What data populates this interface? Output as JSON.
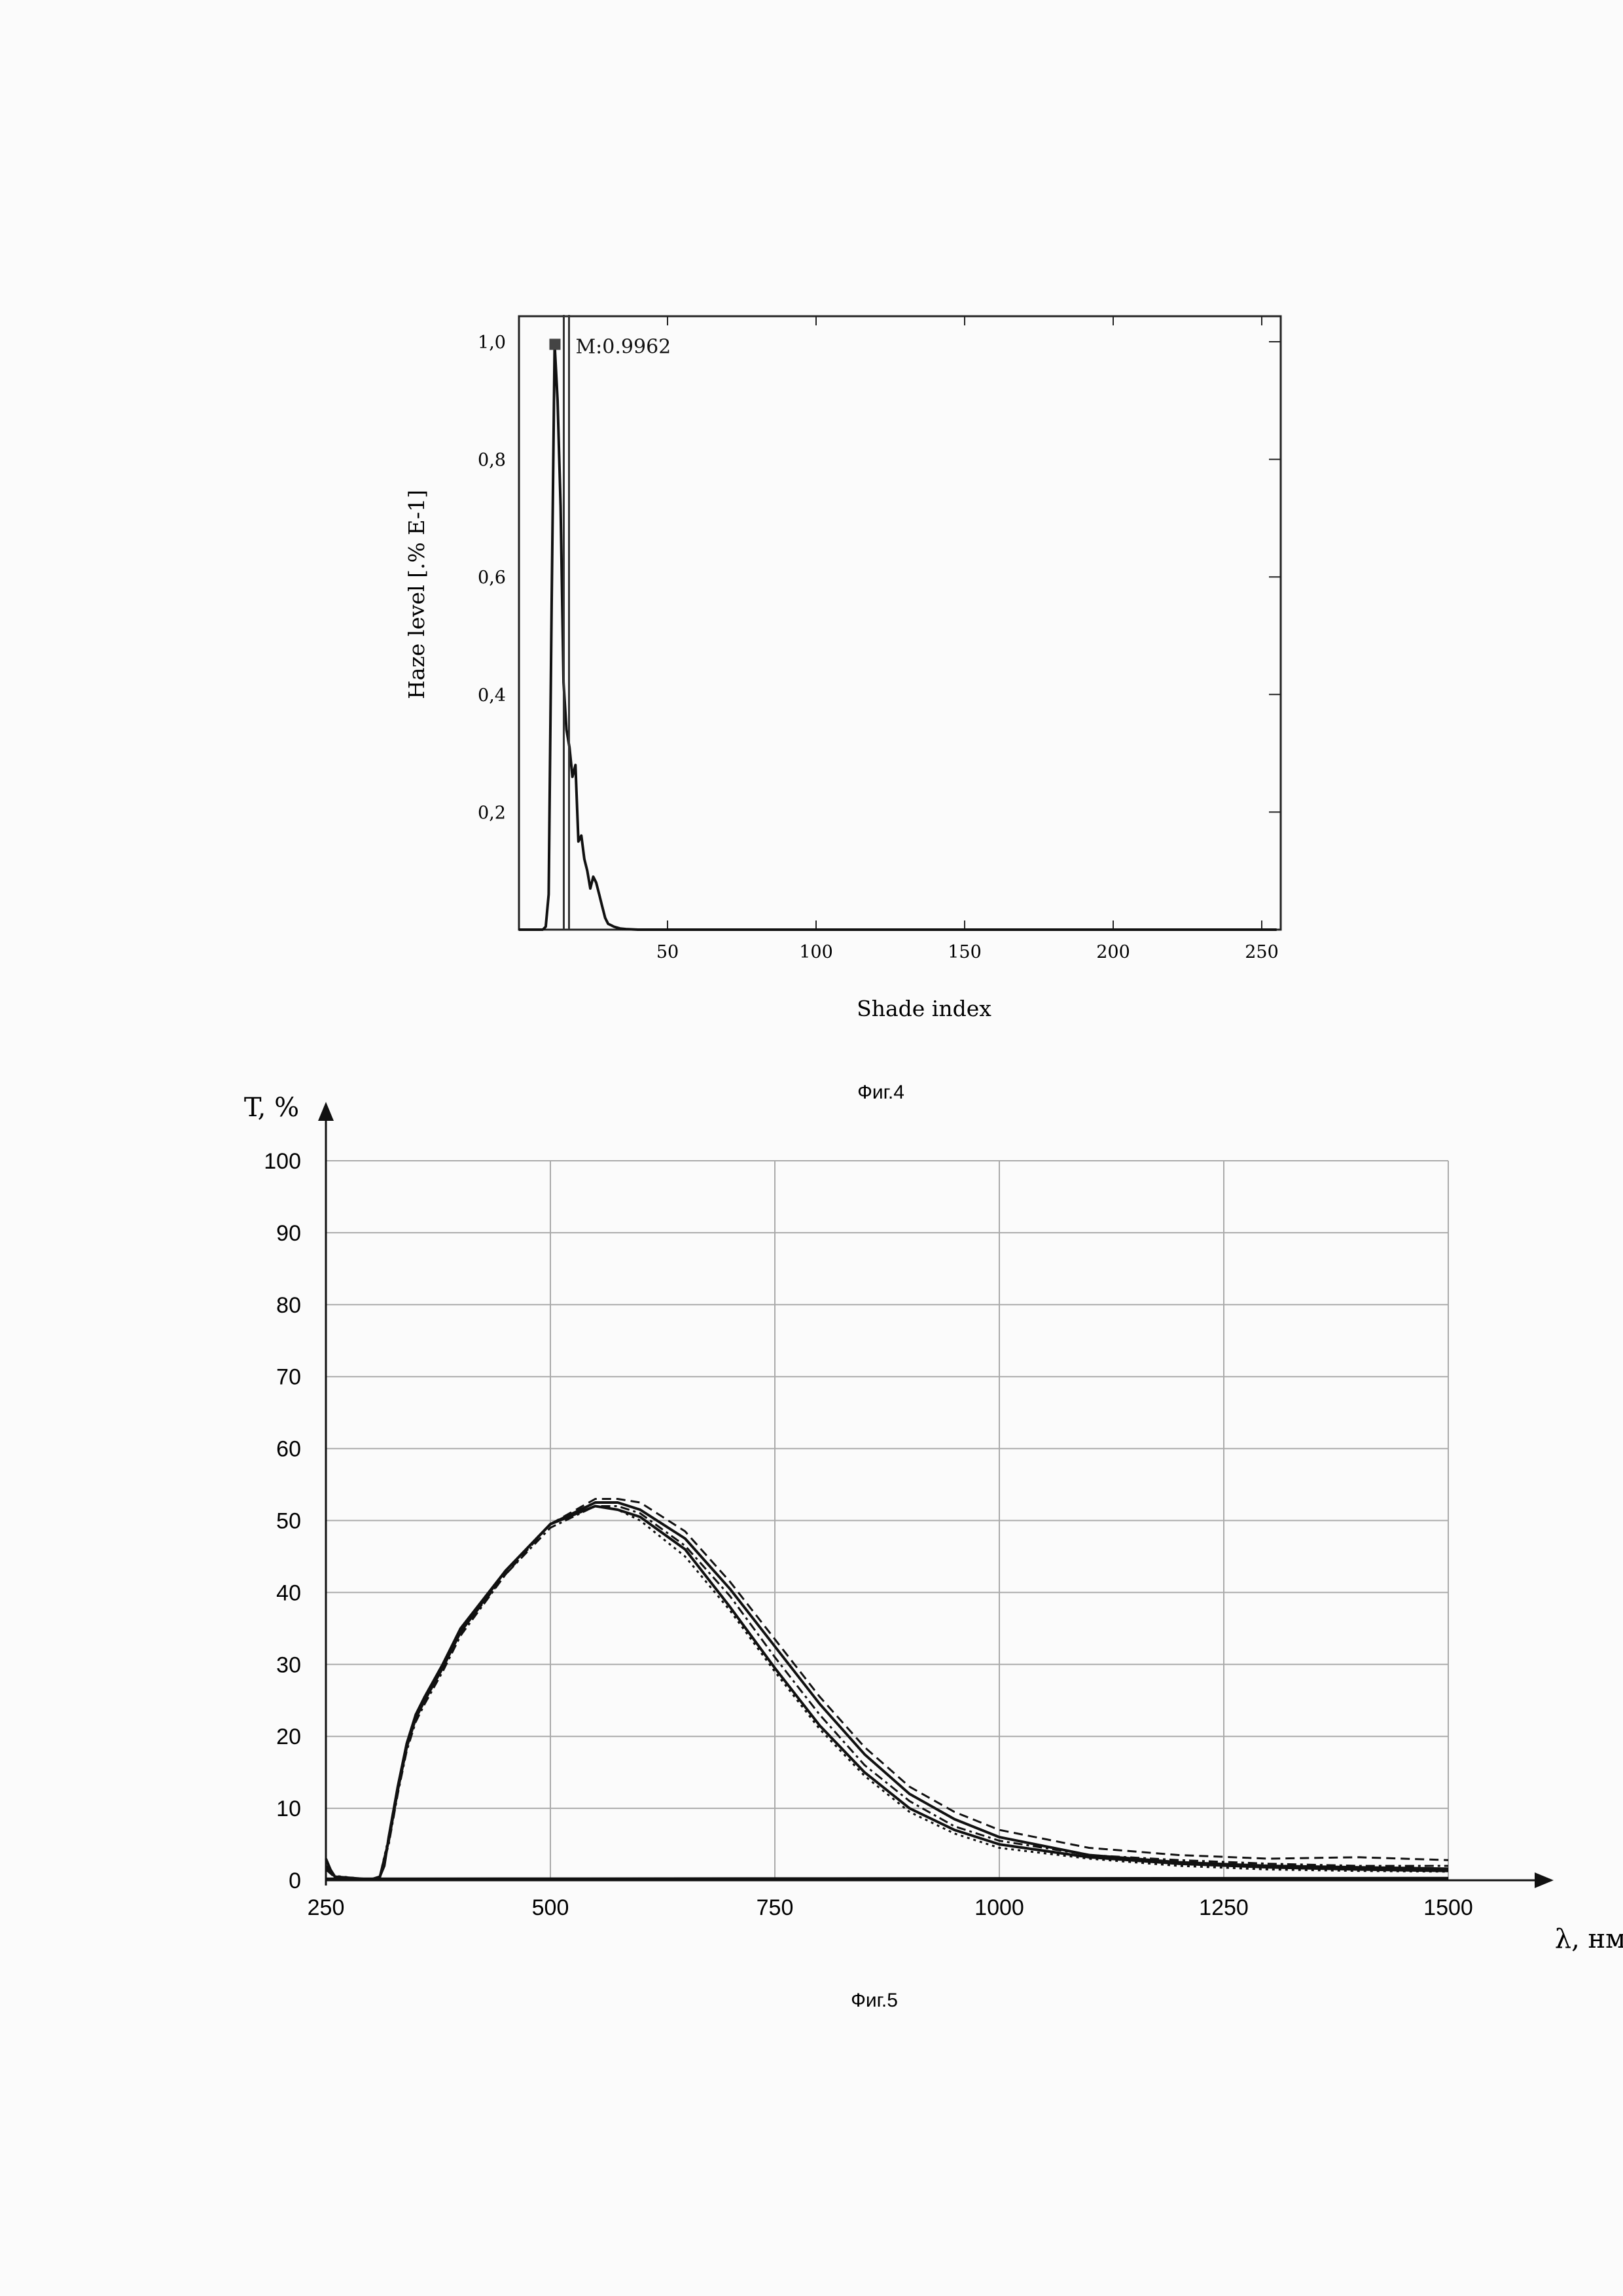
{
  "chart_data": [
    {
      "type": "line",
      "caption": "Фиг.4",
      "xlabel": "Shade index",
      "ylabel": "Haze level [.% E-1]",
      "xlim": [
        0,
        255
      ],
      "ylim": [
        0,
        1.0
      ],
      "x_ticks": [
        50,
        100,
        150,
        200,
        250
      ],
      "y_ticks": [
        "0,2",
        "0,4",
        "0,6",
        "0,8",
        "1,0"
      ],
      "y_tick_values": [
        0.2,
        0.4,
        0.6,
        0.8,
        1.0
      ],
      "marker": {
        "label": "M:0.9962",
        "x": 12,
        "y": 0.9962
      },
      "grid": false,
      "series": [
        {
          "x": [
            0,
            5,
            8,
            9,
            10,
            11,
            12,
            13,
            14,
            15,
            16,
            17,
            18,
            19,
            20,
            21,
            22,
            23,
            24,
            25,
            26,
            27,
            28,
            29,
            30,
            32,
            34,
            36,
            40,
            60,
            100,
            150,
            200,
            250,
            255
          ],
          "y": [
            0,
            0,
            0,
            0.005,
            0.06,
            0.55,
            0.9962,
            0.9,
            0.72,
            0.42,
            0.34,
            0.31,
            0.26,
            0.28,
            0.15,
            0.16,
            0.12,
            0.1,
            0.07,
            0.09,
            0.08,
            0.06,
            0.04,
            0.02,
            0.01,
            0.005,
            0.002,
            0.001,
            0,
            0,
            0,
            0,
            0,
            0,
            0
          ]
        }
      ]
    },
    {
      "type": "line",
      "caption": "Фиг.5",
      "xlabel": "λ, нм",
      "ylabel": "T, %",
      "xlim": [
        250,
        1500
      ],
      "ylim": [
        0,
        100
      ],
      "x_ticks": [
        250,
        500,
        750,
        1000,
        1250,
        1500
      ],
      "y_ticks": [
        0,
        10,
        20,
        30,
        40,
        50,
        60,
        70,
        80,
        90,
        100
      ],
      "grid": true,
      "series": [
        {
          "style": "solid",
          "x": [
            250,
            255,
            260,
            270,
            280,
            300,
            310,
            315,
            320,
            330,
            340,
            350,
            360,
            380,
            400,
            450,
            500,
            550,
            575,
            600,
            650,
            700,
            750,
            800,
            850,
            900,
            950,
            1000,
            1100,
            1200,
            1300,
            1400,
            1500
          ],
          "y": [
            3,
            1.5,
            0.5,
            0.2,
            0.1,
            0.1,
            0.5,
            2,
            6,
            13,
            19,
            23,
            25.5,
            30,
            35,
            43,
            49.5,
            52.5,
            52.5,
            51.5,
            47.5,
            40.5,
            32.5,
            24.5,
            17.5,
            12,
            8.5,
            6,
            3.5,
            2.5,
            2,
            1.8,
            1.6
          ]
        },
        {
          "style": "dashed",
          "x": [
            250,
            260,
            300,
            310,
            320,
            330,
            340,
            350,
            360,
            380,
            400,
            450,
            500,
            550,
            575,
            600,
            650,
            700,
            750,
            800,
            850,
            900,
            950,
            1000,
            1100,
            1200,
            1300,
            1400,
            1500
          ],
          "y": [
            2,
            0.5,
            0.1,
            0.4,
            5.5,
            12.5,
            18.5,
            22.5,
            25,
            29.5,
            34.5,
            42.5,
            49.5,
            53,
            53,
            52.5,
            48.5,
            41.5,
            33.5,
            25.5,
            18.5,
            13,
            9.5,
            7,
            4.5,
            3.5,
            3,
            3.2,
            2.8
          ]
        },
        {
          "style": "dotted",
          "x": [
            250,
            260,
            300,
            310,
            320,
            330,
            340,
            350,
            360,
            380,
            400,
            450,
            500,
            550,
            575,
            600,
            650,
            700,
            750,
            800,
            850,
            900,
            950,
            1000,
            1100,
            1200,
            1300,
            1400,
            1500
          ],
          "y": [
            2.5,
            0.6,
            0.1,
            0.5,
            6,
            13,
            19,
            23,
            25.5,
            30,
            35,
            43,
            49.5,
            52,
            51.5,
            50,
            45,
            37.5,
            29,
            21,
            14.5,
            9.5,
            6.5,
            4.5,
            3,
            2,
            1.5,
            1.3,
            1.2
          ]
        },
        {
          "style": "dashdot",
          "x": [
            250,
            260,
            300,
            310,
            320,
            330,
            340,
            350,
            360,
            380,
            400,
            450,
            500,
            550,
            575,
            600,
            650,
            700,
            750,
            800,
            850,
            900,
            950,
            1000,
            1100,
            1200,
            1300,
            1400,
            1500
          ],
          "y": [
            1.5,
            0.4,
            0.1,
            0.4,
            5,
            12,
            18,
            22,
            24.5,
            29,
            34,
            42.5,
            49,
            52,
            52,
            51,
            46.5,
            39.5,
            31,
            23,
            16,
            11,
            7.5,
            5.5,
            3.5,
            2.8,
            2.3,
            2,
            2
          ]
        },
        {
          "style": "solid",
          "x": [
            250,
            260,
            300,
            310,
            320,
            330,
            340,
            350,
            360,
            380,
            400,
            450,
            500,
            550,
            575,
            600,
            650,
            700,
            750,
            800,
            850,
            900,
            950,
            1000,
            1100,
            1200,
            1300,
            1400,
            1500
          ],
          "y": [
            2,
            0.5,
            0.1,
            0.4,
            5.5,
            12.5,
            18.5,
            22.5,
            25,
            29.5,
            34.5,
            43,
            49.5,
            52,
            51.5,
            50.5,
            46,
            38,
            29.5,
            21.5,
            15,
            10,
            7,
            5,
            3.2,
            2.3,
            1.8,
            1.5,
            1.3
          ]
        },
        {
          "style": "solid",
          "x": [
            250,
            300,
            310,
            1500
          ],
          "y": [
            0.2,
            0.2,
            0.2,
            0.3
          ]
        }
      ]
    }
  ]
}
